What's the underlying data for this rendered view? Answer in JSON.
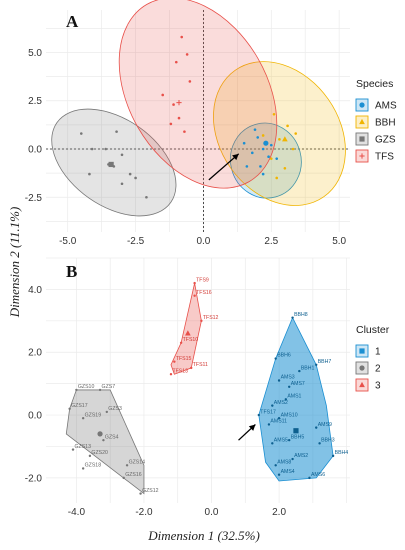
{
  "chart_data": [
    {
      "panel": "A",
      "type": "scatter",
      "xlim": [
        -5.8,
        5.4
      ],
      "ylim": [
        -4.3,
        7.2
      ],
      "xticks": [
        -5.0,
        -2.5,
        0.0,
        2.5,
        5.0
      ],
      "yticks": [
        -2.5,
        0.0,
        2.5,
        5.0
      ],
      "xtick_labels": [
        "-5.0",
        "-2.5",
        "0.0",
        "2.5",
        "5.0"
      ],
      "ytick_labels": [
        "-2.5",
        "0.0",
        "2.5",
        "5.0"
      ],
      "grid": true,
      "zero_lines": true,
      "legend_title": "Species",
      "legend_position": "right",
      "series": [
        {
          "name": "AMS",
          "color": "#1b8fd2",
          "marker": "circle",
          "ellipse": {
            "cx": 2.3,
            "cy": -0.6,
            "rx": 1.3,
            "ry": 1.95,
            "angle": 15
          },
          "centroid": [
            2.3,
            0.3
          ],
          "points": [
            [
              1.5,
              0.3
            ],
            [
              1.8,
              -0.2
            ],
            [
              2.0,
              0.6
            ],
            [
              2.2,
              0.0
            ],
            [
              2.4,
              -0.4
            ],
            [
              2.1,
              -0.9
            ],
            [
              2.5,
              0.2
            ],
            [
              1.6,
              -0.9
            ],
            [
              2.2,
              -1.3
            ],
            [
              2.7,
              -0.5
            ],
            [
              1.9,
              1.0
            ]
          ]
        },
        {
          "name": "BBH",
          "color": "#f0b400",
          "marker": "triangle",
          "ellipse": {
            "cx": 2.8,
            "cy": 0.8,
            "rx": 2.2,
            "ry": 4.0,
            "angle": 35
          },
          "centroid": [
            3.0,
            0.5
          ],
          "points": [
            [
              2.6,
              1.8
            ],
            [
              3.1,
              1.2
            ],
            [
              2.8,
              0.5
            ],
            [
              3.3,
              0.0
            ],
            [
              2.5,
              -0.5
            ],
            [
              3.0,
              -1.0
            ],
            [
              2.2,
              0.7
            ],
            [
              2.7,
              -1.5
            ],
            [
              3.4,
              0.8
            ]
          ]
        },
        {
          "name": "GZS",
          "color": "#777777",
          "marker": "square",
          "ellipse": {
            "cx": -3.3,
            "cy": -0.7,
            "rx": 1.6,
            "ry": 3.6,
            "angle": 55
          },
          "centroid": [
            -3.4,
            -0.8
          ],
          "points": [
            [
              -4.5,
              0.8
            ],
            [
              -3.2,
              0.9
            ],
            [
              -4.1,
              0.0
            ],
            [
              -3.6,
              0.0
            ],
            [
              -3.0,
              -0.3
            ],
            [
              -3.5,
              -0.8
            ],
            [
              -3.3,
              -0.9
            ],
            [
              -4.2,
              -1.3
            ],
            [
              -2.7,
              -1.3
            ],
            [
              -2.5,
              -1.5
            ],
            [
              -3.0,
              -1.8
            ],
            [
              -2.1,
              -2.5
            ]
          ]
        },
        {
          "name": "TFS",
          "color": "#e8504a",
          "marker": "plus",
          "ellipse": {
            "cx": -0.2,
            "cy": 2.9,
            "rx": 2.55,
            "ry": 5.3,
            "angle": 30
          },
          "centroid": [
            -0.9,
            2.4
          ],
          "points": [
            [
              -0.8,
              5.8
            ],
            [
              -0.6,
              4.9
            ],
            [
              -1.0,
              4.5
            ],
            [
              -0.5,
              3.5
            ],
            [
              -1.5,
              2.8
            ],
            [
              -1.1,
              2.3
            ],
            [
              -0.9,
              1.6
            ],
            [
              -1.2,
              1.3
            ],
            [
              -0.7,
              0.9
            ]
          ]
        }
      ],
      "arrow": {
        "from": [
          0.2,
          -1.6
        ],
        "to": [
          1.3,
          -0.25
        ]
      }
    },
    {
      "panel": "B",
      "type": "scatter",
      "xlim": [
        -4.9,
        4.1
      ],
      "ylim": [
        -2.8,
        5.0
      ],
      "xticks": [
        -4.0,
        -2.0,
        0.0,
        2.0
      ],
      "yticks": [
        -2.0,
        0.0,
        2.0,
        4.0
      ],
      "xtick_labels": [
        "-4.0",
        "-2.0",
        "0.0",
        "2.0"
      ],
      "ytick_labels": [
        "-2.0",
        "0.0",
        "2.0",
        "4.0"
      ],
      "xlabel": "Dimension 1 (32.5%)",
      "grid": true,
      "legend_title": "Cluster",
      "legend_position": "right",
      "clusters": [
        {
          "name": "1",
          "color": "#1b8fd2",
          "marker": "square",
          "hull": [
            [
              2.4,
              3.1
            ],
            [
              3.1,
              1.6
            ],
            [
              3.4,
              0.3
            ],
            [
              3.6,
              -1.3
            ],
            [
              3.1,
              -2.0
            ],
            [
              2.0,
              -2.1
            ],
            [
              1.6,
              -1.5
            ],
            [
              1.4,
              0.0
            ],
            [
              1.9,
              1.8
            ]
          ],
          "centroid": [
            2.5,
            -0.5
          ],
          "points": [
            {
              "label": "BBH8",
              "x": 2.4,
              "y": 3.1
            },
            {
              "label": "BBH6",
              "x": 1.9,
              "y": 1.8
            },
            {
              "label": "BBH1",
              "x": 2.6,
              "y": 1.4
            },
            {
              "label": "BBH7",
              "x": 3.1,
              "y": 1.6
            },
            {
              "label": "AMS3",
              "x": 2.0,
              "y": 1.1
            },
            {
              "label": "AMS7",
              "x": 2.3,
              "y": 0.9
            },
            {
              "label": "AMS1",
              "x": 2.2,
              "y": 0.5
            },
            {
              "label": "AMS2",
              "x": 1.8,
              "y": 0.3
            },
            {
              "label": "AMS10",
              "x": 2.0,
              "y": -0.1
            },
            {
              "label": "AMS11",
              "x": 1.7,
              "y": -0.3
            },
            {
              "label": "AMS9",
              "x": 3.1,
              "y": -0.4
            },
            {
              "label": "AMS5",
              "x": 1.8,
              "y": -0.9
            },
            {
              "label": "BBH5",
              "x": 2.3,
              "y": -0.8
            },
            {
              "label": "BBH3",
              "x": 3.2,
              "y": -0.9
            },
            {
              "label": "AMS8",
              "x": 1.9,
              "y": -1.6
            },
            {
              "label": "AMS2",
              "x": 2.4,
              "y": -1.4
            },
            {
              "label": "BBH4",
              "x": 3.6,
              "y": -1.3
            },
            {
              "label": "AMS4",
              "x": 2.0,
              "y": -1.9
            },
            {
              "label": "AMS6",
              "x": 2.9,
              "y": -2.0
            },
            {
              "label": "TFS17",
              "x": 1.4,
              "y": 0.0
            }
          ]
        },
        {
          "name": "2",
          "color": "#777777",
          "marker": "circle",
          "hull": [
            [
              -4.0,
              0.8
            ],
            [
              -3.0,
              0.8
            ],
            [
              -2.0,
              -1.6
            ],
            [
              -2.0,
              -2.5
            ],
            [
              -4.3,
              -0.6
            ],
            [
              -4.2,
              0.2
            ]
          ],
          "centroid": [
            -3.3,
            -0.6
          ],
          "points": [
            {
              "label": "GZS10",
              "x": -4.0,
              "y": 0.8
            },
            {
              "label": "GZS7",
              "x": -3.3,
              "y": 0.8
            },
            {
              "label": "GZS17",
              "x": -4.2,
              "y": 0.2
            },
            {
              "label": "GZS3",
              "x": -3.1,
              "y": 0.1
            },
            {
              "label": "GZS19",
              "x": -3.8,
              "y": -0.1
            },
            {
              "label": "GZS4",
              "x": -3.2,
              "y": -0.8
            },
            {
              "label": "GZS13",
              "x": -4.1,
              "y": -1.1
            },
            {
              "label": "GZS20",
              "x": -3.6,
              "y": -1.3
            },
            {
              "label": "GZS14",
              "x": -2.5,
              "y": -1.6
            },
            {
              "label": "GZS18",
              "x": -3.8,
              "y": -1.7
            },
            {
              "label": "GZS16",
              "x": -2.6,
              "y": -2.0
            },
            {
              "label": "GZS12",
              "x": -2.1,
              "y": -2.5
            }
          ]
        },
        {
          "name": "3",
          "color": "#e8504a",
          "marker": "triangle",
          "hull": [
            [
              -0.5,
              4.2
            ],
            [
              -0.3,
              3.0
            ],
            [
              -0.6,
              1.5
            ],
            [
              -1.1,
              1.3
            ],
            [
              -1.2,
              1.6
            ],
            [
              -0.9,
              2.3
            ]
          ],
          "centroid": [
            -0.7,
            2.6
          ],
          "points": [
            {
              "label": "TFS9",
              "x": -0.5,
              "y": 4.2
            },
            {
              "label": "TFS16",
              "x": -0.5,
              "y": 3.8
            },
            {
              "label": "TFS12",
              "x": -0.3,
              "y": 3.0
            },
            {
              "label": "TFS10",
              "x": -0.9,
              "y": 2.3
            },
            {
              "label": "TFS15",
              "x": -1.1,
              "y": 1.7
            },
            {
              "label": "TFS11",
              "x": -0.6,
              "y": 1.5
            },
            {
              "label": "TFS13",
              "x": -1.2,
              "y": 1.3
            }
          ]
        }
      ],
      "arrow": {
        "from": [
          0.8,
          -0.8
        ],
        "to": [
          1.3,
          -0.3
        ]
      }
    }
  ],
  "shared": {
    "ylabel": "Dimension 2 (11.1%)"
  }
}
